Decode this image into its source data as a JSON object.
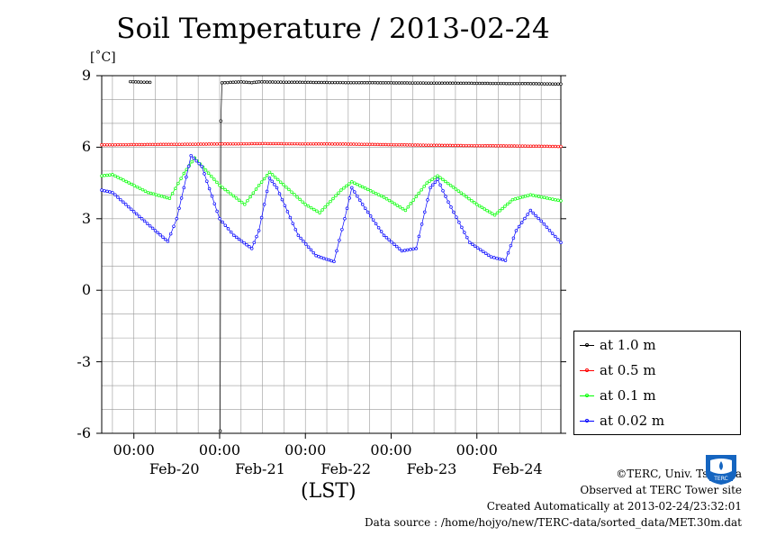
{
  "chart_data": {
    "type": "line",
    "title": "Soil Temperature / 2013-02-24",
    "ylabel": "[˚C]",
    "xlabel": "(LST)",
    "ylim": [
      -6,
      9
    ],
    "yticks": [
      "9",
      "6",
      "3",
      "0",
      "-3",
      "-6"
    ],
    "ytick_values": [
      9,
      6,
      3,
      0,
      -3,
      -6
    ],
    "xlim": [
      "2013-02-19 15:00",
      "2013-02-24 23:30"
    ],
    "xticks": [
      {
        "time": "00:00",
        "date": "Feb-20",
        "at": "2013-02-20 00:00"
      },
      {
        "time": "00:00",
        "date": "Feb-21",
        "at": "2013-02-21 00:00"
      },
      {
        "time": "00:00",
        "date": "Feb-22",
        "at": "2013-02-22 00:00"
      },
      {
        "time": "00:00",
        "date": "Feb-23",
        "at": "2013-02-23 00:00"
      },
      {
        "time": "00:00",
        "date": "Feb-24",
        "at": "2013-02-24 00:00"
      }
    ],
    "grid": true,
    "legend_position": "bottom-right outside",
    "series": [
      {
        "name": "at 1.0 m",
        "color": "#000000",
        "points": [
          [
            "2013-02-19 23:00",
            8.75
          ],
          [
            "2013-02-20 02:00",
            8.73
          ],
          [
            "2013-02-20 04:30",
            8.72
          ],
          [
            "2013-02-21 00:00",
            null
          ],
          [
            "2013-02-21 00:10",
            -5.9
          ],
          [
            "2013-02-21 00:20",
            7.1
          ],
          [
            "2013-02-21 00:40",
            8.7
          ],
          [
            "2013-02-21 03:00",
            8.72
          ],
          [
            "2013-02-21 06:00",
            8.74
          ],
          [
            "2013-02-21 09:00",
            8.71
          ],
          [
            "2013-02-21 11:00",
            8.74
          ],
          [
            "2013-02-22 00:00",
            8.72
          ],
          [
            "2013-02-22 12:00",
            8.71
          ],
          [
            "2013-02-23 00:00",
            8.7
          ],
          [
            "2013-02-23 12:00",
            8.69
          ],
          [
            "2013-02-24 00:00",
            8.68
          ],
          [
            "2013-02-24 12:00",
            8.67
          ],
          [
            "2013-02-24 23:30",
            8.65
          ]
        ]
      },
      {
        "name": "at 0.5 m",
        "color": "#ff0000",
        "points": [
          [
            "2013-02-19 15:00",
            6.1
          ],
          [
            "2013-02-20 12:00",
            6.12
          ],
          [
            "2013-02-21 12:00",
            6.15
          ],
          [
            "2013-02-22 12:00",
            6.13
          ],
          [
            "2013-02-23 12:00",
            6.08
          ],
          [
            "2013-02-24 12:00",
            6.05
          ],
          [
            "2013-02-24 23:30",
            6.03
          ]
        ]
      },
      {
        "name": "at 0.1 m",
        "color": "#00ff00",
        "points": [
          [
            "2013-02-19 15:00",
            4.8
          ],
          [
            "2013-02-19 18:00",
            4.85
          ],
          [
            "2013-02-20 04:00",
            4.1
          ],
          [
            "2013-02-20 10:00",
            3.85
          ],
          [
            "2013-02-20 14:00",
            4.9
          ],
          [
            "2013-02-20 17:00",
            5.55
          ],
          [
            "2013-02-21 00:00",
            4.4
          ],
          [
            "2013-02-21 07:00",
            3.6
          ],
          [
            "2013-02-21 11:00",
            4.4
          ],
          [
            "2013-02-21 14:00",
            4.95
          ],
          [
            "2013-02-22 00:00",
            3.6
          ],
          [
            "2013-02-22 04:00",
            3.25
          ],
          [
            "2013-02-22 10:00",
            4.2
          ],
          [
            "2013-02-22 13:00",
            4.55
          ],
          [
            "2013-02-22 22:00",
            3.9
          ],
          [
            "2013-02-23 04:00",
            3.35
          ],
          [
            "2013-02-23 10:00",
            4.5
          ],
          [
            "2013-02-23 13:00",
            4.8
          ],
          [
            "2013-02-24 00:00",
            3.6
          ],
          [
            "2013-02-24 05:00",
            3.15
          ],
          [
            "2013-02-24 10:00",
            3.8
          ],
          [
            "2013-02-24 15:00",
            4.0
          ],
          [
            "2013-02-24 23:30",
            3.75
          ]
        ]
      },
      {
        "name": "at 0.02 m",
        "color": "#0000ff",
        "points": [
          [
            "2013-02-19 15:00",
            4.2
          ],
          [
            "2013-02-19 18:00",
            4.1
          ],
          [
            "2013-02-20 00:00",
            3.3
          ],
          [
            "2013-02-20 06:00",
            2.5
          ],
          [
            "2013-02-20 09:30",
            2.05
          ],
          [
            "2013-02-20 12:00",
            3.0
          ],
          [
            "2013-02-20 14:00",
            4.3
          ],
          [
            "2013-02-20 16:00",
            5.65
          ],
          [
            "2013-02-20 19:00",
            5.2
          ],
          [
            "2013-02-21 00:00",
            3.0
          ],
          [
            "2013-02-21 04:00",
            2.3
          ],
          [
            "2013-02-21 09:00",
            1.75
          ],
          [
            "2013-02-21 11:00",
            2.5
          ],
          [
            "2013-02-21 14:00",
            4.7
          ],
          [
            "2013-02-21 16:00",
            4.3
          ],
          [
            "2013-02-21 22:00",
            2.3
          ],
          [
            "2013-02-22 03:00",
            1.45
          ],
          [
            "2013-02-22 08:00",
            1.2
          ],
          [
            "2013-02-22 11:00",
            3.0
          ],
          [
            "2013-02-22 13:00",
            4.3
          ],
          [
            "2013-02-22 16:00",
            3.6
          ],
          [
            "2013-02-22 22:00",
            2.3
          ],
          [
            "2013-02-23 03:00",
            1.65
          ],
          [
            "2013-02-23 07:00",
            1.75
          ],
          [
            "2013-02-23 11:00",
            4.3
          ],
          [
            "2013-02-23 13:00",
            4.65
          ],
          [
            "2013-02-23 16:00",
            3.7
          ],
          [
            "2013-02-23 22:00",
            2.0
          ],
          [
            "2013-02-24 04:00",
            1.4
          ],
          [
            "2013-02-24 08:00",
            1.25
          ],
          [
            "2013-02-24 11:00",
            2.5
          ],
          [
            "2013-02-24 15:00",
            3.35
          ],
          [
            "2013-02-24 18:00",
            2.9
          ],
          [
            "2013-02-24 23:30",
            2.0
          ]
        ]
      }
    ]
  },
  "credits": {
    "copyright": "©TERC, Univ. Tsukuba",
    "observed": "Observed at TERC Tower site",
    "created": "Created Automatically at 2013-02-24/23:32:01",
    "source": "Data source : /home/hojyo/new/TERC-data/sorted_data/MET.30m.dat"
  },
  "logo": {
    "text": "TERC"
  }
}
